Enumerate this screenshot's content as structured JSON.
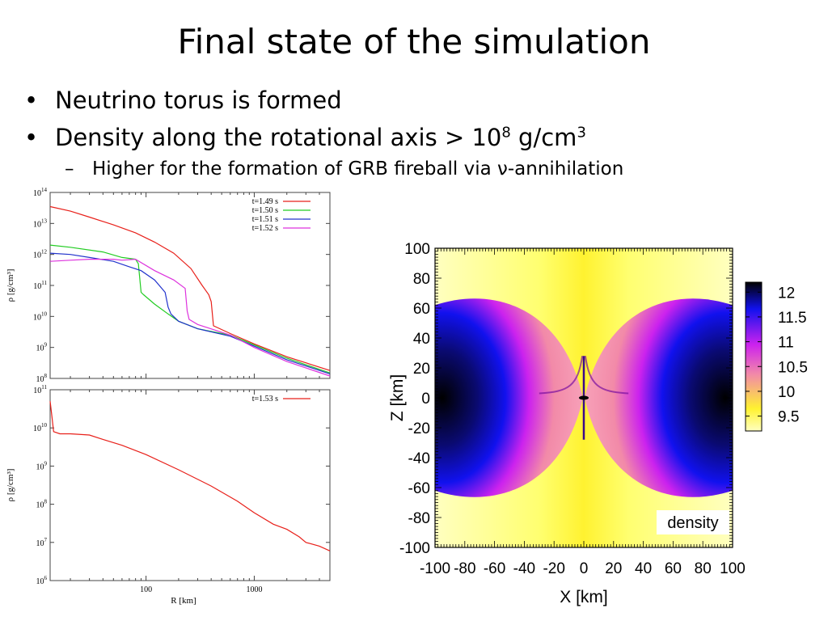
{
  "slide": {
    "title": "Final state of the simulation",
    "bullets": [
      {
        "text": "Neutrino torus is formed"
      },
      {
        "text_prefix": "Density along the rotational axis ",
        "symbol": ">",
        "value_base": " 10",
        "value_exp": "8",
        "unit_base": " g/cm",
        "unit_exp": "3"
      }
    ],
    "sub_bullet": "Higher for the formation of GRB fireball via ν-annihilation"
  },
  "chart_data": [
    {
      "type": "line",
      "xscale": "log",
      "yscale": "log",
      "xlim": [
        13,
        5000
      ],
      "ylim": [
        100000000.0,
        100000000000000.0
      ],
      "ylabel": "ρ [g/cm³]",
      "ytick_labels": [
        "10^8",
        "10^9",
        "10^10",
        "10^11",
        "10^12",
        "10^13",
        "10^14"
      ],
      "legend_position": "top-right",
      "series": [
        {
          "name": "t=1.49 s",
          "color": "#e8201a",
          "x": [
            13,
            20,
            30,
            50,
            80,
            120,
            180,
            260,
            330,
            380,
            400,
            420,
            600,
            1000,
            2000,
            5000
          ],
          "y": [
            35000000000000.0,
            25000000000000.0,
            16000000000000.0,
            9000000000000.0,
            5000000000000.0,
            2500000000000.0,
            1100000000000.0,
            350000000000.0,
            100000000000.0,
            50000000000.0,
            30000000000.0,
            5000000000.0,
            2800000000.0,
            1300000000.0,
            500000000.0,
            180000000.0
          ]
        },
        {
          "name": "t=1.50 s",
          "color": "#22cc22",
          "x": [
            13,
            20,
            40,
            60,
            80,
            85,
            90,
            95,
            120,
            160,
            200,
            300,
            600,
            1000,
            2000,
            5000
          ],
          "y": [
            2000000000000.0,
            1700000000000.0,
            1200000000000.0,
            800000000000.0,
            700000000000.0,
            500000000000.0,
            60000000000.0,
            50000000000.0,
            25000000000.0,
            12000000000.0,
            7000000000.0,
            4000000000.0,
            2500000000.0,
            1200000000.0,
            450000000.0,
            150000000.0
          ]
        },
        {
          "name": "t=1.51 s",
          "color": "#2233cc",
          "x": [
            13,
            20,
            30,
            50,
            70,
            90,
            120,
            150,
            160,
            170,
            200,
            300,
            600,
            1000,
            2000,
            5000
          ],
          "y": [
            1100000000000.0,
            1000000000000.0,
            800000000000.0,
            600000000000.0,
            400000000000.0,
            300000000000.0,
            150000000000.0,
            60000000000.0,
            20000000000.0,
            12000000000.0,
            7000000000.0,
            4000000000.0,
            2300000000.0,
            1100000000.0,
            400000000.0,
            140000000.0
          ]
        },
        {
          "name": "t=1.52 s",
          "color": "#dd33dd",
          "x": [
            13,
            20,
            30,
            40,
            50,
            60,
            80,
            120,
            180,
            230,
            240,
            250,
            300,
            600,
            1000,
            2000,
            5000
          ],
          "y": [
            600000000000.0,
            650000000000.0,
            700000000000.0,
            700000000000.0,
            700000000000.0,
            650000000000.0,
            700000000000.0,
            300000000000.0,
            150000000000.0,
            80000000000.0,
            15000000000.0,
            8000000000.0,
            5500000000.0,
            2500000000.0,
            1000000000.0,
            350000000.0,
            120000000.0
          ]
        }
      ]
    },
    {
      "type": "line",
      "xscale": "log",
      "yscale": "log",
      "xlim": [
        13,
        5000
      ],
      "ylim": [
        1000000.0,
        100000000000.0
      ],
      "xlabel": "R [km]",
      "ylabel": "ρ [g/cm³]",
      "xtick_labels": [
        "100",
        "1000"
      ],
      "xtick_values": [
        100,
        1000
      ],
      "ytick_labels": [
        "10^6",
        "10^7",
        "10^8",
        "10^9",
        "10^10",
        "10^11"
      ],
      "legend_position": "top-right",
      "series": [
        {
          "name": "t=1.53 s",
          "color": "#e8201a",
          "x": [
            13,
            13.5,
            14,
            16,
            20,
            30,
            40,
            60,
            100,
            200,
            400,
            700,
            1000,
            1500,
            2000,
            2600,
            3000,
            4000,
            5000
          ],
          "y": [
            50000000000.0,
            20000000000.0,
            8000000000.0,
            7000000000.0,
            7000000000.0,
            6500000000.0,
            5000000000.0,
            3500000000.0,
            2000000000.0,
            800000000.0,
            300000000.0,
            120000000.0,
            60000000.0,
            30000000.0,
            22000000.0,
            14000000.0,
            10000000.0,
            8000000.0,
            6000000.0
          ]
        }
      ]
    },
    {
      "type": "heatmap",
      "label": "density",
      "xlabel": "X [km]",
      "ylabel": "Z [km]",
      "xlim": [
        -100,
        100
      ],
      "ylim": [
        -100,
        100
      ],
      "xticks": [
        "-100",
        "-80",
        "-60",
        "-40",
        "-20",
        "0",
        "20",
        "40",
        "60",
        "80",
        "100"
      ],
      "yticks": [
        "100",
        "80",
        "60",
        "40",
        "20",
        "0",
        "-20",
        "-40",
        "-60",
        "-80",
        "-100"
      ],
      "colorbar_range": [
        9.2,
        12.2
      ],
      "colorbar_ticks": [
        "12",
        "11.5",
        "11",
        "10.5",
        "10",
        "9.5"
      ],
      "colors": {
        "low": "#ffffc0",
        "mid_low": "#fff230",
        "mid": "#f28aa8",
        "mid_high": "#cc22ee",
        "high": "#1111ee",
        "max": "#000000"
      }
    }
  ]
}
